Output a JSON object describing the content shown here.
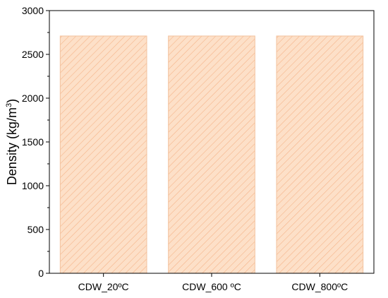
{
  "chart_data": {
    "type": "bar",
    "title": "",
    "xlabel": "",
    "ylabel": "Density (kg/m3)",
    "ylabel_parts": {
      "main": "Density (kg/m",
      "superscript": "3",
      "close": ")"
    },
    "categories": [
      "CDW_20ºC",
      "CDW_600 ºC",
      "CDW_800ºC"
    ],
    "values": [
      2710,
      2710,
      2710
    ],
    "ylim": [
      0,
      3000
    ],
    "yticks": [
      0,
      500,
      1000,
      1500,
      2000,
      2500,
      3000
    ],
    "grid": false,
    "legend": "none",
    "bar_fill_color": "#fde0c8",
    "bar_hatch_color": "#f5b48a",
    "bar_edge_color": "#f3c29e",
    "axis_color": "#000000"
  }
}
